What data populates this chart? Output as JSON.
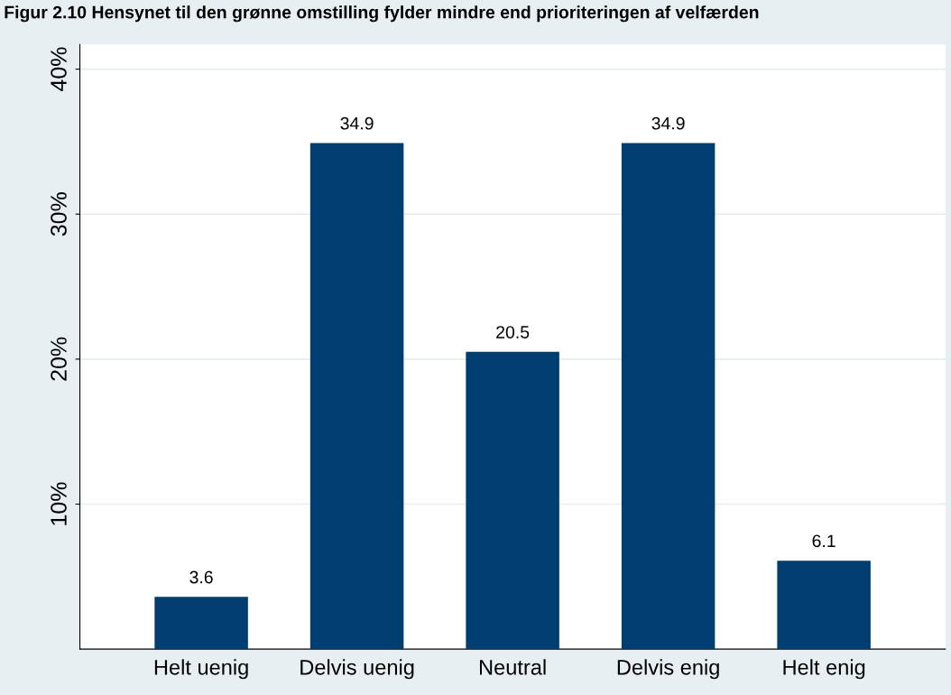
{
  "chart_data": {
    "type": "bar",
    "title": "Figur 2.10 Hensynet til den grønne omstilling fylder mindre end prioriteringen af velfærden",
    "categories": [
      "Helt uenig",
      "Delvis uenig",
      "Neutral",
      "Delvis enig",
      "Helt enig"
    ],
    "values": [
      3.6,
      34.9,
      20.5,
      34.9,
      6.1
    ],
    "color": "#003d70",
    "ylim": [
      0,
      41.7
    ],
    "yticks": [
      {
        "value": 10,
        "label": "10%"
      },
      {
        "value": 20,
        "label": "20%"
      },
      {
        "value": 30,
        "label": "30%"
      },
      {
        "value": 40,
        "label": "40%"
      }
    ],
    "grid": "y",
    "data_labels": true
  }
}
